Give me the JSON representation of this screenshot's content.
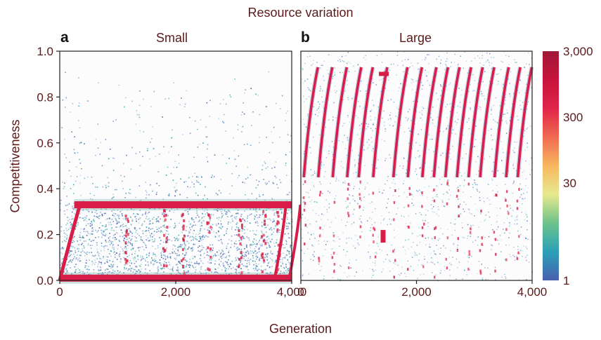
{
  "title": "Resource variation",
  "xlabel": "Generation",
  "ylabel": "Competitiveness",
  "chart_data": [
    {
      "type": "heatmap",
      "panel": "a",
      "subtitle": "Small",
      "xlim": [
        0,
        4000
      ],
      "ylim": [
        0,
        1.0
      ],
      "x_ticks": [
        "0",
        "2,000",
        "4,000"
      ],
      "y_ticks": [
        "0.0",
        "0.2",
        "0.4",
        "0.6",
        "0.8",
        "1.0"
      ],
      "bands": [
        {
          "name": "upper band",
          "y": 0.33,
          "x_start": 250,
          "x_end": 4000
        },
        {
          "name": "lower band",
          "y": 0.01,
          "x_start": 0,
          "x_end": 4000
        }
      ]
    },
    {
      "type": "heatmap",
      "panel": "b",
      "subtitle": "Large",
      "xlim": [
        0,
        4000
      ],
      "ylim": [
        0,
        1.0
      ],
      "x_ticks": [
        "0",
        "2,000",
        "4,000"
      ],
      "stripes_x_start": [
        100,
        350,
        600,
        850,
        1050,
        1300,
        1650,
        1900,
        2150,
        2350,
        2550,
        2750,
        2950,
        3150,
        3400,
        3600,
        3800
      ]
    }
  ],
  "colorbar": {
    "label_ticks": [
      "3,000",
      "300",
      "30",
      "1"
    ],
    "scale": "log",
    "range": [
      1,
      3000
    ],
    "colors": [
      "#4a5fb0",
      "#2aa0b8",
      "#6cc28a",
      "#e8e890",
      "#f6b860",
      "#f06a50",
      "#e0244a",
      "#c8143c",
      "#a01838"
    ]
  }
}
